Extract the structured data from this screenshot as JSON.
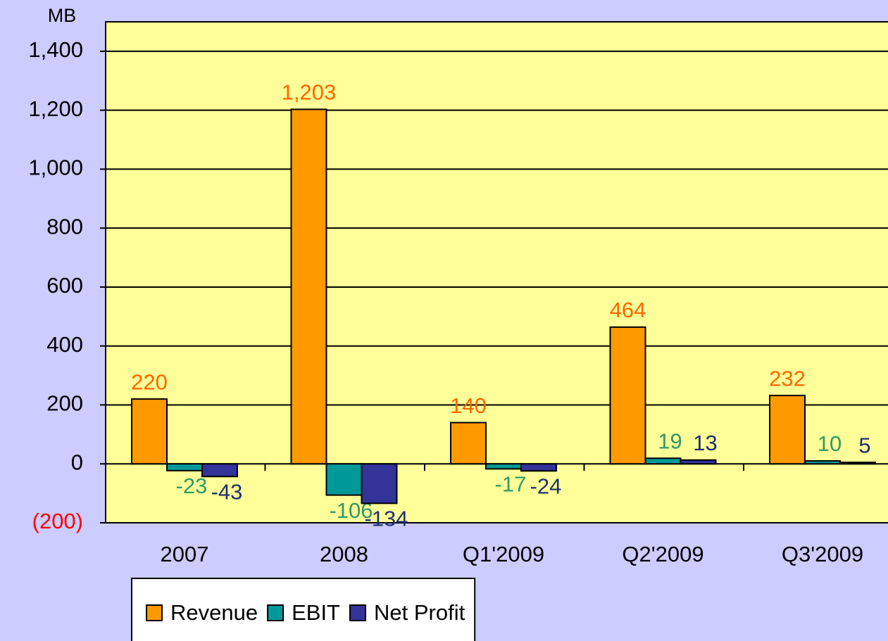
{
  "chart_data": {
    "type": "bar",
    "y_axis_label": "MB",
    "categories": [
      "2007",
      "2008",
      "Q1'2009",
      "Q2'2009",
      "Q3'2009"
    ],
    "series": [
      {
        "name": "Revenue",
        "color": "#ff9900",
        "label_color": "#ff6600",
        "values": [
          220,
          1203,
          140,
          464,
          232
        ],
        "value_labels": [
          "220",
          "1,203",
          "140",
          "464",
          "232"
        ]
      },
      {
        "name": "EBIT",
        "color": "#009999",
        "label_color": "#339966",
        "values": [
          -23,
          -106,
          -17,
          19,
          10
        ]
      },
      {
        "name": "Net Profit",
        "color": "#333399",
        "label_color": "#1f2f6f",
        "values": [
          -43,
          -134,
          -24,
          13,
          5
        ]
      }
    ],
    "ylim": [
      -200,
      1500
    ],
    "yticks": [
      {
        "value": -200,
        "label": "(200)"
      },
      0,
      200,
      400,
      600,
      800,
      {
        "value": 1000,
        "label": "1,000"
      },
      {
        "value": 1200,
        "label": "1,200"
      },
      {
        "value": 1400,
        "label": "1,400"
      }
    ],
    "grid": true,
    "plot_color": "#ffff99",
    "legend": "bottom"
  }
}
